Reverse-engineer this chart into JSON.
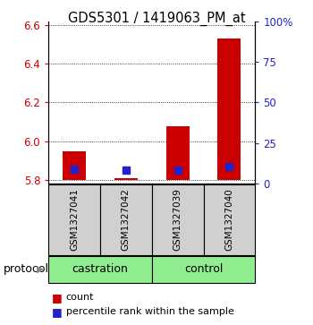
{
  "title": "GDS5301 / 1419063_PM_at",
  "samples": [
    "GSM1327041",
    "GSM1327042",
    "GSM1327039",
    "GSM1327040"
  ],
  "groups": [
    "castration",
    "castration",
    "control",
    "control"
  ],
  "group_info": [
    [
      "castration",
      0,
      1
    ],
    [
      "control",
      2,
      3
    ]
  ],
  "bar_bottom": 5.8,
  "red_tops": [
    5.945,
    5.808,
    6.075,
    6.53
  ],
  "blue_values": [
    5.855,
    5.848,
    5.848,
    5.868
  ],
  "ylim_left": [
    5.78,
    6.62
  ],
  "ylim_right": [
    0,
    100
  ],
  "yticks_left": [
    5.8,
    6.0,
    6.2,
    6.4,
    6.6
  ],
  "yticks_right": [
    0,
    25,
    50,
    75,
    100
  ],
  "ytick_labels_right": [
    "0",
    "25",
    "50",
    "75",
    "100%"
  ],
  "red_color": "#cc0000",
  "blue_color": "#2222cc",
  "bg_color": "#ffffff",
  "sample_box_color": "#d0d0d0",
  "group_color": "#90ee90",
  "bar_width": 0.45,
  "blue_marker_size": 5.5,
  "legend_items": [
    "count",
    "percentile rank within the sample"
  ],
  "title_fontsize": 10.5,
  "tick_fontsize": 8.5,
  "sample_fontsize": 7.5,
  "protocol_fontsize": 9,
  "legend_fontsize": 8
}
